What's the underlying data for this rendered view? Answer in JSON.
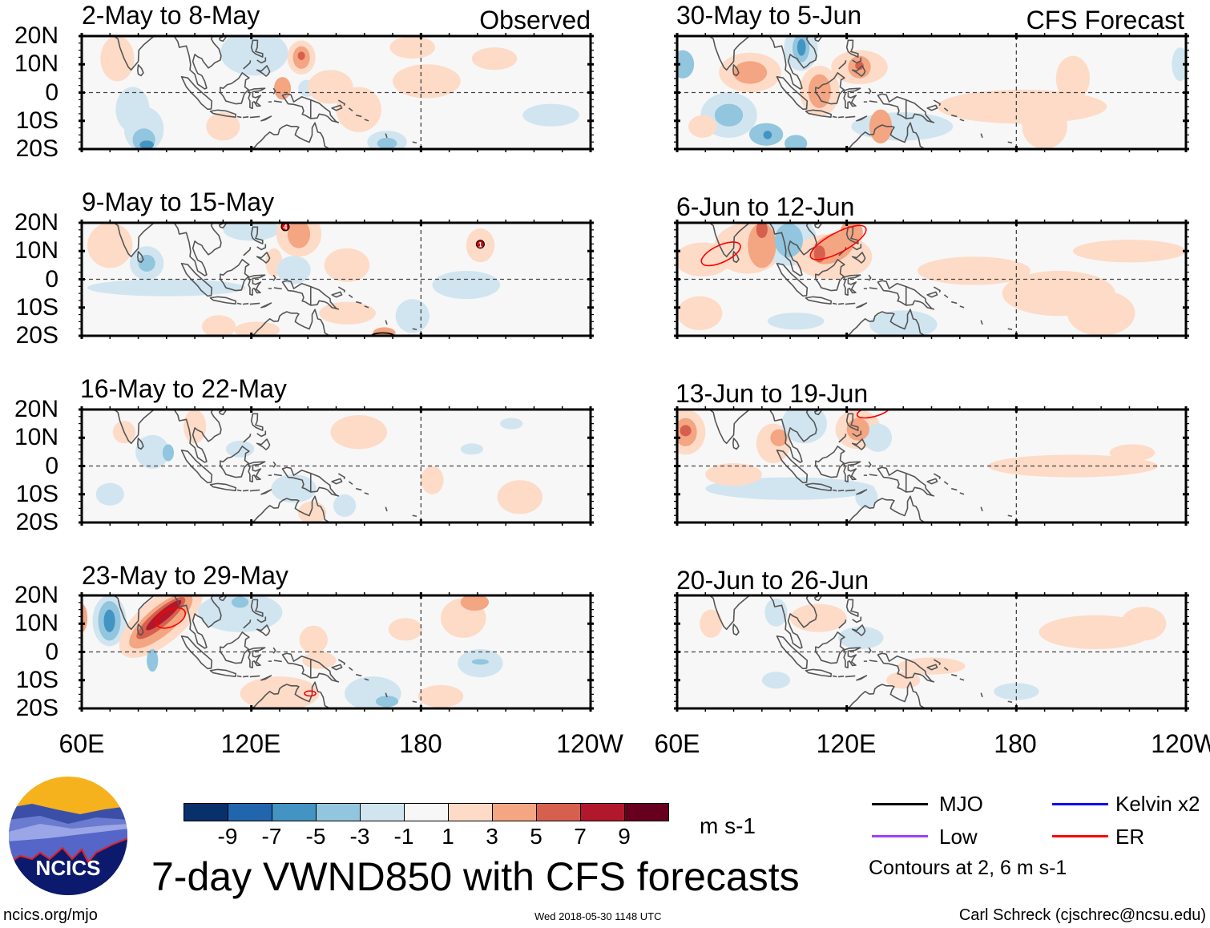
{
  "headers": {
    "observed": "Observed",
    "forecast": "CFS Forecast"
  },
  "lat_labels": [
    "20N",
    "10N",
    "0",
    "10S",
    "20S"
  ],
  "lon_labels": [
    "60E",
    "120E",
    "180",
    "120W"
  ],
  "colors": {
    "levels": [
      "#08306b",
      "#2166ac",
      "#4393c3",
      "#92c5de",
      "#d1e5f0",
      "#f7f7f7",
      "#fddbc7",
      "#f4a582",
      "#d6604d",
      "#b2182b",
      "#67001f"
    ],
    "coast": "#555555",
    "er": "#ff0000",
    "mjo": "#000000",
    "kelvin": "#0000ff",
    "low": "#a040ff"
  },
  "colorbar": {
    "labels": [
      "-9",
      "-7",
      "-5",
      "-3",
      "-1",
      "1",
      "3",
      "5",
      "7",
      "9"
    ],
    "units": "m s-1"
  },
  "title": "7-day VWND850 with CFS forecasts",
  "legend": {
    "mjo": "MJO",
    "kelvin": "Kelvin x2",
    "low": "Low",
    "er": "ER",
    "contours_note": "Contours at 2, 6 m s-1"
  },
  "footer": {
    "url": "ncics.org/mjo",
    "timestamp": "Wed 2018-05-30 1148 UTC",
    "author": "Carl Schreck (cjschrec@ncsu.edu)"
  },
  "logo": {
    "text": "NCICS"
  },
  "map_data": {
    "field": "VWND850 anomaly (m s-1)",
    "lon_range": [
      60,
      240
    ],
    "lat_range": [
      -20,
      20
    ],
    "panels": [
      {
        "title": "2-May to 8-May",
        "group": "observed",
        "blobs": [
          [
            82,
            -13,
            7,
            8,
            -2
          ],
          [
            82,
            -16.7,
            4,
            4,
            -4
          ],
          [
            83,
            -18.5,
            2.5,
            1.5,
            -6
          ],
          [
            121,
            14,
            12,
            8,
            -2
          ],
          [
            139.6,
            1.5,
            3,
            3,
            -2
          ],
          [
            72.6,
            12,
            6,
            8,
            2
          ],
          [
            137.7,
            12.4,
            5,
            6,
            2
          ],
          [
            137.7,
            12.4,
            3,
            4,
            4
          ],
          [
            137.7,
            13,
            1.3,
            1.5,
            6
          ],
          [
            131,
            1.5,
            3,
            4,
            4
          ],
          [
            148,
            2,
            8,
            6,
            2
          ],
          [
            158,
            -6,
            8,
            8,
            2
          ],
          [
            177,
            16,
            8,
            4,
            2
          ],
          [
            182,
            4,
            12,
            6,
            2
          ],
          [
            110,
            -12,
            6,
            5,
            2
          ],
          [
            168,
            -17.5,
            7,
            4,
            -2
          ],
          [
            168,
            -18,
            3.5,
            2,
            -4
          ],
          [
            226,
            -8,
            10,
            4,
            -2
          ],
          [
            78,
            -6,
            6,
            8,
            -2
          ],
          [
            206,
            12,
            8,
            4,
            2
          ]
        ],
        "contours": [],
        "storms": []
      },
      {
        "title": "9-May to 15-May",
        "group": "observed",
        "blobs": [
          [
            120,
            17.6,
            10,
            4,
            -2
          ],
          [
            136.8,
            16,
            8,
            8,
            2
          ],
          [
            136.8,
            16,
            4,
            5,
            4
          ],
          [
            83,
            5.7,
            6,
            6,
            -2
          ],
          [
            83,
            5.7,
            3,
            3,
            -4
          ],
          [
            70,
            12,
            8,
            8,
            2
          ],
          [
            128,
            6,
            3,
            5,
            2
          ],
          [
            153.8,
            5,
            8,
            6,
            2
          ],
          [
            90,
            -3,
            28,
            3,
            -2
          ],
          [
            135,
            3.3,
            6,
            5,
            -2
          ],
          [
            108.5,
            -16.7,
            6,
            4,
            2
          ],
          [
            122,
            -18,
            8,
            3,
            2
          ],
          [
            154,
            -12,
            10,
            4,
            2
          ],
          [
            201,
            12,
            5,
            6,
            2
          ],
          [
            196,
            -2,
            12,
            5,
            -2
          ],
          [
            177,
            -13,
            6,
            6,
            -2
          ],
          [
            167,
            -19,
            4,
            2,
            4
          ]
        ],
        "contours": [
          {
            "type": "mjo",
            "lon": 166.5,
            "lat": -20,
            "rx": 4,
            "ry": 1,
            "rot": 0
          }
        ],
        "storms": [
          {
            "lon": 132,
            "lat": 18.6,
            "label": "4"
          },
          {
            "lon": 201,
            "lat": 12.4,
            "label": "1"
          }
        ]
      },
      {
        "title": "16-May to 22-May",
        "group": "observed",
        "blobs": [
          [
            158,
            12,
            10,
            6,
            2
          ],
          [
            100,
            14,
            4,
            6,
            2
          ],
          [
            85,
            5,
            6,
            6,
            -2
          ],
          [
            90.6,
            4.7,
            2,
            3,
            -4
          ],
          [
            215,
            -11,
            8,
            6,
            2
          ],
          [
            184,
            -5,
            4,
            5,
            2
          ],
          [
            153,
            -14,
            4,
            4,
            -2
          ],
          [
            135,
            -8,
            8,
            5,
            -2
          ],
          [
            141.5,
            -16.5,
            5,
            4,
            2
          ],
          [
            198,
            6,
            4,
            2,
            -2
          ],
          [
            70,
            -10,
            5,
            4,
            -2
          ],
          [
            75,
            12,
            4,
            4,
            2
          ],
          [
            116,
            6,
            5,
            3,
            -2
          ],
          [
            212,
            15,
            4,
            2,
            -2
          ]
        ],
        "contours": [],
        "storms": []
      },
      {
        "title": "23-May to 29-May",
        "group": "observed",
        "blobs": [
          [
            69.8,
            11,
            6,
            9,
            -2
          ],
          [
            69.8,
            11,
            4,
            7,
            -4
          ],
          [
            69.8,
            11,
            2,
            4,
            -7
          ],
          [
            88,
            11,
            18,
            8,
            2,
            -40
          ],
          [
            88,
            11,
            14,
            5,
            4,
            -40
          ],
          [
            88,
            12,
            11,
            3,
            6,
            -40
          ],
          [
            89,
            13,
            8,
            1.8,
            8,
            -40
          ],
          [
            60,
            12,
            2,
            5,
            4
          ],
          [
            116,
            14,
            15,
            7,
            -2
          ],
          [
            116,
            17.6,
            3,
            2,
            -4
          ],
          [
            85,
            -3,
            2,
            4,
            -4
          ],
          [
            142,
            4.3,
            5,
            5,
            2
          ],
          [
            144,
            -3,
            6,
            3,
            2
          ],
          [
            174.5,
            8,
            6,
            4,
            2
          ],
          [
            195,
            12,
            8,
            7,
            2
          ],
          [
            199,
            17.6,
            5,
            3,
            4
          ],
          [
            130,
            -14.7,
            14,
            6,
            2
          ],
          [
            163,
            -14.7,
            10,
            6,
            -2
          ],
          [
            168,
            -17.5,
            4,
            2,
            -4
          ],
          [
            201,
            -4,
            8,
            5,
            -2
          ],
          [
            201,
            -3.5,
            3,
            1,
            -4
          ],
          [
            187,
            -15.7,
            8,
            4,
            2
          ]
        ],
        "contours": [
          {
            "type": "er",
            "lon": 91.5,
            "lat": 12,
            "rx": 5.5,
            "ry": 3,
            "rot": -25
          },
          {
            "type": "er",
            "lon": 140.8,
            "lat": -14.7,
            "rx": 2,
            "ry": 0.9,
            "rot": 0
          }
        ],
        "storms": []
      },
      {
        "title": "30-May to 5-Jun",
        "group": "forecast",
        "blobs": [
          [
            103.8,
            15.7,
            6,
            8,
            -2
          ],
          [
            103.8,
            15.7,
            3,
            5,
            -4
          ],
          [
            104,
            16,
            1.5,
            3,
            -6
          ],
          [
            85.8,
            7.1,
            11,
            7,
            2
          ],
          [
            85.8,
            7.1,
            6,
            4,
            4
          ],
          [
            124.5,
            9,
            10,
            6,
            2
          ],
          [
            124.5,
            9,
            4,
            4,
            4
          ],
          [
            124.5,
            9.5,
            1.5,
            1.5,
            6
          ],
          [
            110.4,
            0.5,
            7,
            9,
            2
          ],
          [
            110.4,
            0.5,
            4,
            6,
            4
          ],
          [
            182,
            -5,
            30,
            6,
            2
          ],
          [
            190,
            -12,
            8,
            8,
            2
          ],
          [
            200,
            5,
            6,
            8,
            2
          ],
          [
            78.3,
            -8,
            10,
            8,
            -2
          ],
          [
            78.3,
            -8,
            5,
            4,
            -4
          ],
          [
            91.5,
            -14.8,
            6,
            4,
            -4
          ],
          [
            102,
            -18,
            4,
            3,
            -4
          ],
          [
            92,
            -15,
            1.5,
            1.5,
            -6
          ],
          [
            139.6,
            -12,
            18,
            5,
            -2
          ],
          [
            62,
            10,
            4,
            5,
            -4
          ],
          [
            132,
            -12,
            4,
            6,
            4
          ],
          [
            69,
            -12,
            5,
            4,
            2
          ],
          [
            238,
            10,
            3,
            6,
            -2
          ]
        ],
        "contours": [],
        "storms": []
      },
      {
        "title": "6-Jun to 12-Jun",
        "group": "forecast",
        "blobs": [
          [
            85,
            11,
            12,
            9,
            2
          ],
          [
            90,
            12,
            5,
            8,
            4
          ],
          [
            90,
            17.6,
            2,
            3,
            6
          ],
          [
            99.5,
            13.8,
            10,
            9,
            -2
          ],
          [
            99.5,
            13.8,
            5,
            6,
            -4
          ],
          [
            115,
            8,
            14,
            8,
            2
          ],
          [
            115,
            11,
            8,
            5,
            4,
            -25
          ],
          [
            110.4,
            9,
            2,
            3,
            6
          ],
          [
            121.7,
            16.7,
            4,
            4,
            4
          ],
          [
            69,
            7,
            10,
            6,
            2
          ],
          [
            165,
            3,
            20,
            5,
            2
          ],
          [
            195,
            -5,
            20,
            8,
            2
          ],
          [
            220,
            10,
            20,
            4,
            2
          ],
          [
            210,
            -12,
            12,
            8,
            2
          ],
          [
            102,
            -14.8,
            10,
            3,
            -2
          ],
          [
            140,
            -16,
            12,
            5,
            -2
          ],
          [
            68,
            -12,
            8,
            6,
            2
          ]
        ],
        "contours": [
          {
            "type": "er",
            "lon": 75.5,
            "lat": 9,
            "rx": 7.5,
            "ry": 3,
            "rot": -25
          },
          {
            "type": "er",
            "lon": 117,
            "lat": 13,
            "rx": 11,
            "ry": 3.5,
            "rot": -28
          }
        ],
        "storms": []
      },
      {
        "title": "13-Jun to 19-Jun",
        "group": "forecast",
        "blobs": [
          [
            63,
            12,
            7,
            8,
            2
          ],
          [
            63,
            12,
            4,
            5,
            4
          ],
          [
            63,
            12.5,
            2,
            2,
            6
          ],
          [
            94,
            8,
            6,
            7,
            2
          ],
          [
            96,
            10,
            3,
            3,
            4
          ],
          [
            105,
            15,
            8,
            7,
            -2
          ],
          [
            124,
            13,
            8,
            7,
            2
          ],
          [
            124,
            13,
            4,
            4,
            4
          ],
          [
            100,
            -8,
            30,
            4,
            -2
          ],
          [
            131,
            10,
            5,
            5,
            -2
          ],
          [
            200,
            0,
            30,
            4,
            2
          ],
          [
            221,
            4.7,
            8,
            3,
            2
          ],
          [
            127,
            -11,
            4,
            4,
            -2
          ],
          [
            80,
            -3,
            10,
            4,
            2
          ]
        ],
        "contours": [
          {
            "type": "er",
            "lon": 129.5,
            "lat": 19.5,
            "rx": 6,
            "ry": 2,
            "rot": -15
          }
        ],
        "storms": []
      },
      {
        "title": "20-Jun to 26-Jun",
        "group": "forecast",
        "blobs": [
          [
            110,
            12,
            10,
            5,
            2
          ],
          [
            208,
            7,
            20,
            6,
            2
          ],
          [
            225,
            10,
            8,
            6,
            2
          ],
          [
            150,
            -5,
            12,
            3,
            2
          ],
          [
            95,
            14,
            4,
            5,
            -2
          ],
          [
            125,
            5,
            8,
            4,
            -2
          ],
          [
            180,
            -14,
            8,
            3,
            -2
          ],
          [
            140,
            -10,
            6,
            3,
            2
          ],
          [
            72,
            10,
            4,
            5,
            2
          ],
          [
            95,
            -10,
            5,
            3,
            -2
          ]
        ],
        "contours": [],
        "storms": []
      }
    ]
  }
}
